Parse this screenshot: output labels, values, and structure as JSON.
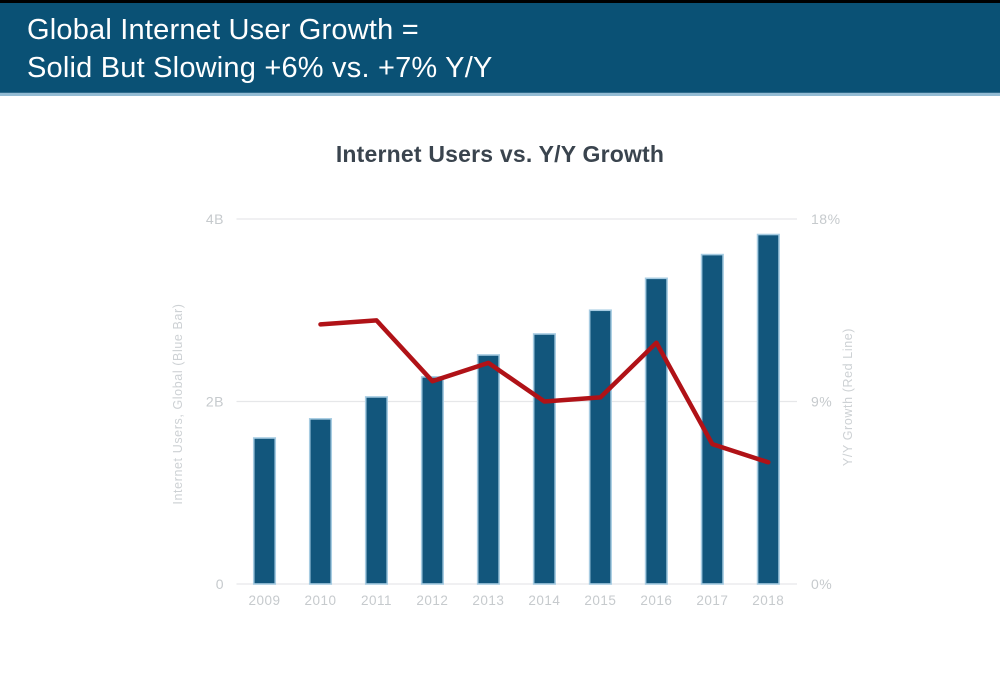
{
  "header": {
    "line1": "Global Internet User Growth =",
    "line2": "Solid But Slowing +6% vs. +7% Y/Y",
    "bg_color": "#0A5175",
    "text_color": "#FFFFFF"
  },
  "chart_data": {
    "type": "bar+line",
    "title": "Internet Users vs. Y/Y Growth",
    "categories": [
      "2009",
      "2010",
      "2011",
      "2012",
      "2013",
      "2014",
      "2015",
      "2016",
      "2017",
      "2018"
    ],
    "series": [
      {
        "name": "Internet Users, Global (Blue Bar)",
        "type": "bar",
        "axis": "left",
        "unit": "billions",
        "values": [
          1.6,
          1.81,
          2.05,
          2.27,
          2.51,
          2.74,
          3.0,
          3.35,
          3.61,
          3.83
        ]
      },
      {
        "name": "Y/Y Growth (Red Line)",
        "type": "line",
        "axis": "right",
        "unit": "%",
        "values": [
          null,
          12.8,
          13.0,
          10.0,
          10.9,
          9.0,
          9.2,
          11.9,
          6.9,
          6.0
        ]
      }
    ],
    "left_axis": {
      "title": "Internet Users, Global (Blue Bar)",
      "ticks": [
        "4B",
        "2B",
        "0"
      ],
      "tick_values": [
        4,
        2,
        0
      ],
      "range": [
        0,
        4
      ]
    },
    "right_axis": {
      "title": "Y/Y Growth (Red Line)",
      "ticks": [
        "18%",
        "9%",
        "0%"
      ],
      "tick_values": [
        18,
        9,
        0
      ],
      "range": [
        0,
        18
      ]
    },
    "grid": "horizontal-only",
    "legend": "none",
    "colors": {
      "bar": "#12567C",
      "bar_edge": "#A7CCE2",
      "line": "#B01217",
      "grid_line": "#E6E7E9",
      "tick_label": "#C6CACD",
      "axis_title": "#CDD1D4",
      "title_text": "#3A444E"
    }
  }
}
